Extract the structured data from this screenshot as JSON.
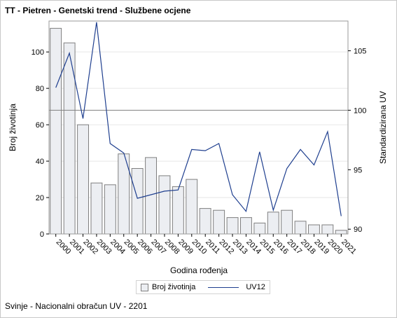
{
  "title": "TT - Pietren - Genetski trend - Službene ocjene",
  "footnote": "Svinje - Nacionalni obračun UV - 2201",
  "colors": {
    "bar_fill": "#eceef2",
    "bar_stroke": "#7f7f7f",
    "line": "#1f3f8f",
    "reference_line": "#7f7f7f",
    "grid": "#e6e6e6"
  },
  "chart_data": {
    "type": "bar",
    "xlabel": "Godina rođenja",
    "ylabel": "Broj životinja",
    "y2label": "Standardizirana UV",
    "categories": [
      "2000",
      "2001",
      "2002",
      "2003",
      "2004",
      "2005",
      "2006",
      "2007",
      "2008",
      "2009",
      "2010",
      "2011",
      "2012",
      "2013",
      "2014",
      "2015",
      "2016",
      "2017",
      "2018",
      "2019",
      "2020",
      "2021"
    ],
    "ylim": [
      0,
      117
    ],
    "yticks": [
      0,
      20,
      40,
      60,
      80,
      100
    ],
    "y2lim": [
      89.6,
      107.5
    ],
    "y2ticks": [
      90,
      95,
      100,
      105
    ],
    "reference_y2": 100,
    "grid": true,
    "legend_position": "bottom",
    "series": [
      {
        "name": "Broj životinja",
        "type": "bar",
        "axis": "left",
        "values": [
          113,
          105,
          60,
          28,
          27,
          44,
          36,
          42,
          32,
          26,
          30,
          14,
          13,
          9,
          9,
          6,
          12,
          13,
          7,
          5,
          5,
          2
        ]
      },
      {
        "name": "UV12",
        "type": "line",
        "axis": "right",
        "values": [
          101.9,
          104.8,
          99.3,
          107.4,
          97.2,
          96.4,
          92.6,
          92.9,
          93.2,
          93.3,
          96.7,
          96.6,
          97.2,
          92.9,
          91.5,
          96.5,
          91.6,
          95.1,
          96.7,
          95.4,
          98.2,
          91.1
        ]
      }
    ]
  }
}
